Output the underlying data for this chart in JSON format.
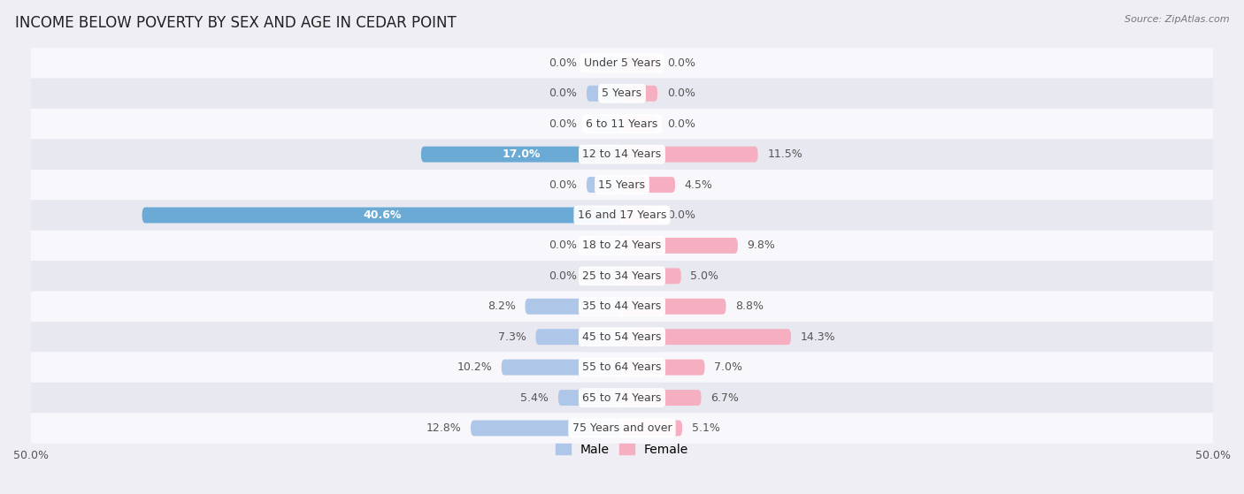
{
  "title": "INCOME BELOW POVERTY BY SEX AND AGE IN CEDAR POINT",
  "source": "Source: ZipAtlas.com",
  "categories": [
    "Under 5 Years",
    "5 Years",
    "6 to 11 Years",
    "12 to 14 Years",
    "15 Years",
    "16 and 17 Years",
    "18 to 24 Years",
    "25 to 34 Years",
    "35 to 44 Years",
    "45 to 54 Years",
    "55 to 64 Years",
    "65 to 74 Years",
    "75 Years and over"
  ],
  "male": [
    0.0,
    0.0,
    0.0,
    17.0,
    0.0,
    40.6,
    0.0,
    0.0,
    8.2,
    7.3,
    10.2,
    5.4,
    12.8
  ],
  "female": [
    0.0,
    0.0,
    0.0,
    11.5,
    4.5,
    0.0,
    9.8,
    5.0,
    8.8,
    14.3,
    7.0,
    6.7,
    5.1
  ],
  "male_color_light": "#aec6e8",
  "male_color_dark": "#6aaad4",
  "female_color_light": "#f5afc0",
  "female_color_dark": "#f07090",
  "bar_height": 0.52,
  "xlim": 50.0,
  "background_color": "#eeeef4",
  "row_bg_white": "#f8f8fc",
  "row_bg_gray": "#e8e8f0",
  "title_fontsize": 12,
  "label_fontsize": 9,
  "category_fontsize": 9,
  "axis_fontsize": 9,
  "legend_fontsize": 10,
  "dark_threshold": 15.0
}
